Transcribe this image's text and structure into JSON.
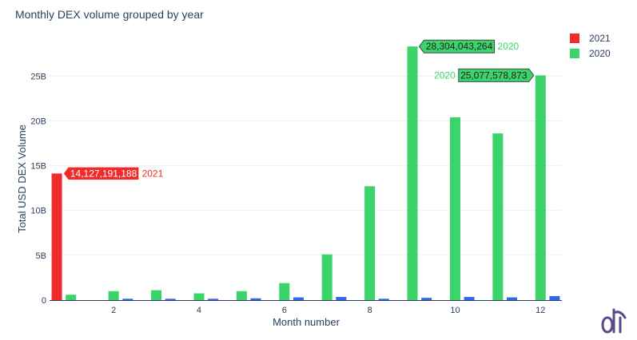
{
  "chart_data": {
    "type": "bar",
    "title": "Monthly DEX volume grouped by year",
    "xlabel": "Month number",
    "ylabel": "Total USD DEX Volume",
    "x": [
      1,
      2,
      3,
      4,
      5,
      6,
      7,
      8,
      9,
      10,
      11,
      12
    ],
    "xlim": [
      0.5,
      12.5
    ],
    "xticks": [
      2,
      4,
      6,
      8,
      10,
      12
    ],
    "ylim": [
      0,
      28500000000
    ],
    "yticks": [
      0,
      5000000000,
      10000000000,
      15000000000,
      20000000000,
      25000000000
    ],
    "ytick_labels": [
      "0",
      "5B",
      "10B",
      "15B",
      "20B",
      "25B"
    ],
    "grid": true,
    "legend_position": "top-right",
    "series": [
      {
        "name": "2021",
        "color": "#ef2b2b",
        "values": [
          14127191188,
          null,
          null,
          null,
          null,
          null,
          null,
          null,
          null,
          null,
          null,
          null
        ]
      },
      {
        "name": "2020",
        "color": "#3bd46b",
        "values": [
          600000000,
          1000000000,
          1100000000,
          750000000,
          1000000000,
          1900000000,
          5100000000,
          12700000000,
          28304043264,
          20400000000,
          18600000000,
          25077578873
        ]
      },
      {
        "name": "",
        "color": "#3366ee",
        "values": [
          null,
          150000000,
          150000000,
          150000000,
          200000000,
          300000000,
          350000000,
          150000000,
          250000000,
          350000000,
          300000000,
          450000000
        ]
      }
    ],
    "annotations": [
      {
        "series": "2021",
        "x": 1,
        "value_label": "14,127,191,188",
        "name_label": "2021",
        "side": "right"
      },
      {
        "series": "2020",
        "x": 9,
        "value_label": "28,304,043,264",
        "name_label": "2020",
        "side": "right"
      },
      {
        "series": "2020",
        "x": 12,
        "value_label": "25,077,578,873",
        "name_label": "2020",
        "side": "left"
      }
    ]
  },
  "logo": {
    "text": "dt",
    "color": "#5a4a8a"
  }
}
